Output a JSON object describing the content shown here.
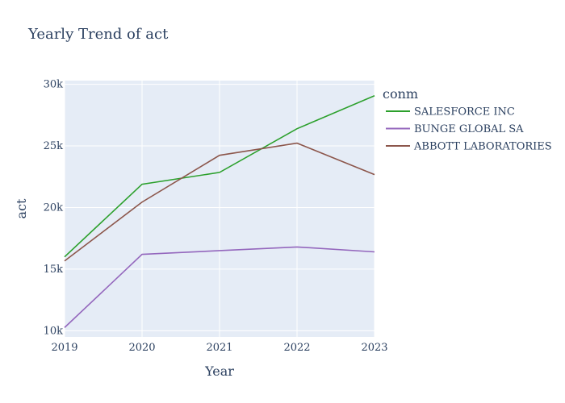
{
  "chart_data": {
    "type": "line",
    "title": "Yearly Trend of act",
    "xlabel": "Year",
    "ylabel": "act",
    "x": [
      2019,
      2020,
      2021,
      2022,
      2023
    ],
    "xlim": [
      2019,
      2023
    ],
    "ylim": [
      9500,
      30300
    ],
    "y_ticks": [
      10000,
      15000,
      20000,
      25000,
      30000
    ],
    "y_tick_labels": [
      "10k",
      "15k",
      "20k",
      "25k",
      "30k"
    ],
    "x_tick_labels": [
      "2019",
      "2020",
      "2021",
      "2022",
      "2023"
    ],
    "legend_title": "conm",
    "legend_position": "right",
    "grid": true,
    "series": [
      {
        "name": "SALESFORCE INC",
        "color": "#2ca02c",
        "values": [
          15995,
          21889,
          22850,
          26395,
          29074
        ]
      },
      {
        "name": "BUNGE GLOBAL SA",
        "color": "#9467bd",
        "values": [
          10260,
          16200,
          16500,
          16800,
          16400
        ]
      },
      {
        "name": "ABBOTT LABORATORIES",
        "color": "#8c564b",
        "values": [
          15667,
          20441,
          24239,
          25224,
          22670
        ]
      }
    ]
  }
}
